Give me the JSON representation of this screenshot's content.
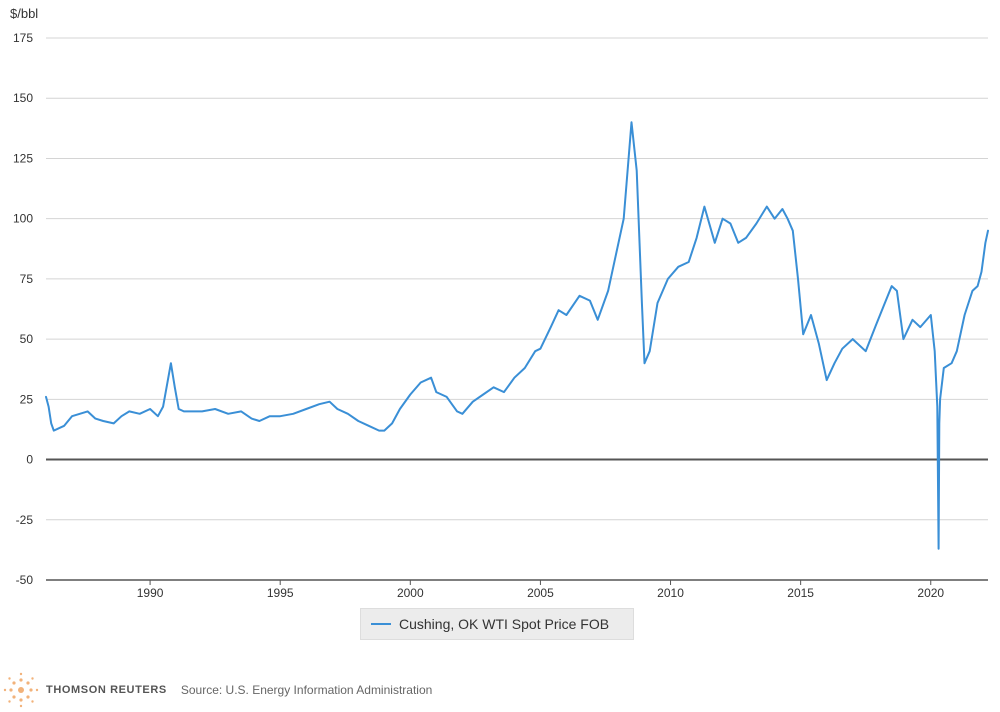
{
  "chart_data": {
    "type": "line",
    "ylabel": "$/bbl",
    "ylim": [
      -50,
      175
    ],
    "yticks": [
      "175",
      "150",
      "125",
      "100",
      "75",
      "50",
      "25",
      "0",
      "-25",
      "-50"
    ],
    "xlim": [
      1986,
      2022.2
    ],
    "xticks": [
      "1990",
      "1995",
      "2000",
      "2005",
      "2010",
      "2015",
      "2020"
    ],
    "grid": true,
    "legend_position": "bottom-center",
    "series": [
      {
        "name": "Cushing, OK WTI Spot Price FOB",
        "color": "#3a8fd6",
        "x": [
          1986.0,
          1986.1,
          1986.2,
          1986.3,
          1986.5,
          1986.7,
          1987.0,
          1987.3,
          1987.6,
          1987.9,
          1988.2,
          1988.6,
          1988.9,
          1989.2,
          1989.6,
          1990.0,
          1990.3,
          1990.5,
          1990.7,
          1990.8,
          1990.95,
          1991.1,
          1991.3,
          1991.6,
          1992.0,
          1992.5,
          1993.0,
          1993.5,
          1993.9,
          1994.2,
          1994.6,
          1995.0,
          1995.5,
          1996.0,
          1996.5,
          1996.9,
          1997.2,
          1997.6,
          1998.0,
          1998.4,
          1998.8,
          1999.0,
          1999.3,
          1999.6,
          2000.0,
          2000.4,
          2000.8,
          2001.0,
          2001.4,
          2001.8,
          2002.0,
          2002.4,
          2002.8,
          2003.2,
          2003.6,
          2004.0,
          2004.4,
          2004.8,
          2005.0,
          2005.4,
          2005.7,
          2006.0,
          2006.5,
          2006.9,
          2007.2,
          2007.6,
          2007.9,
          2008.2,
          2008.5,
          2008.7,
          2008.9,
          2009.0,
          2009.2,
          2009.5,
          2009.9,
          2010.3,
          2010.7,
          2011.0,
          2011.3,
          2011.7,
          2012.0,
          2012.3,
          2012.6,
          2012.9,
          2013.3,
          2013.7,
          2014.0,
          2014.3,
          2014.5,
          2014.7,
          2014.9,
          2015.1,
          2015.4,
          2015.7,
          2016.0,
          2016.3,
          2016.6,
          2017.0,
          2017.5,
          2017.9,
          2018.2,
          2018.5,
          2018.7,
          2018.95,
          2019.3,
          2019.6,
          2020.0,
          2020.15,
          2020.25,
          2020.3,
          2020.33,
          2020.36,
          2020.5,
          2020.8,
          2021.0,
          2021.3,
          2021.6,
          2021.8,
          2021.95,
          2022.1,
          2022.2
        ],
        "values": [
          26,
          22,
          15,
          12,
          13,
          14,
          18,
          19,
          20,
          17,
          16,
          15,
          18,
          20,
          19,
          21,
          18,
          22,
          34,
          40,
          30,
          21,
          20,
          20,
          20,
          21,
          19,
          20,
          17,
          16,
          18,
          18,
          19,
          21,
          23,
          24,
          21,
          19,
          16,
          14,
          12,
          12,
          15,
          21,
          27,
          32,
          34,
          28,
          26,
          20,
          19,
          24,
          27,
          30,
          28,
          34,
          38,
          45,
          46,
          55,
          62,
          60,
          68,
          66,
          58,
          70,
          85,
          100,
          140,
          120,
          65,
          40,
          45,
          65,
          75,
          80,
          82,
          92,
          105,
          90,
          100,
          98,
          90,
          92,
          98,
          105,
          100,
          104,
          100,
          95,
          75,
          52,
          60,
          48,
          33,
          40,
          46,
          50,
          45,
          56,
          64,
          72,
          70,
          50,
          58,
          55,
          60,
          45,
          22,
          -37,
          15,
          25,
          38,
          40,
          45,
          60,
          70,
          72,
          78,
          90,
          95
        ]
      }
    ]
  },
  "legend": {
    "label": "Cushing, OK WTI Spot Price FOB"
  },
  "footer": {
    "brand": "THOMSON REUTERS",
    "source": "Source: U.S. Energy Information Administration"
  }
}
